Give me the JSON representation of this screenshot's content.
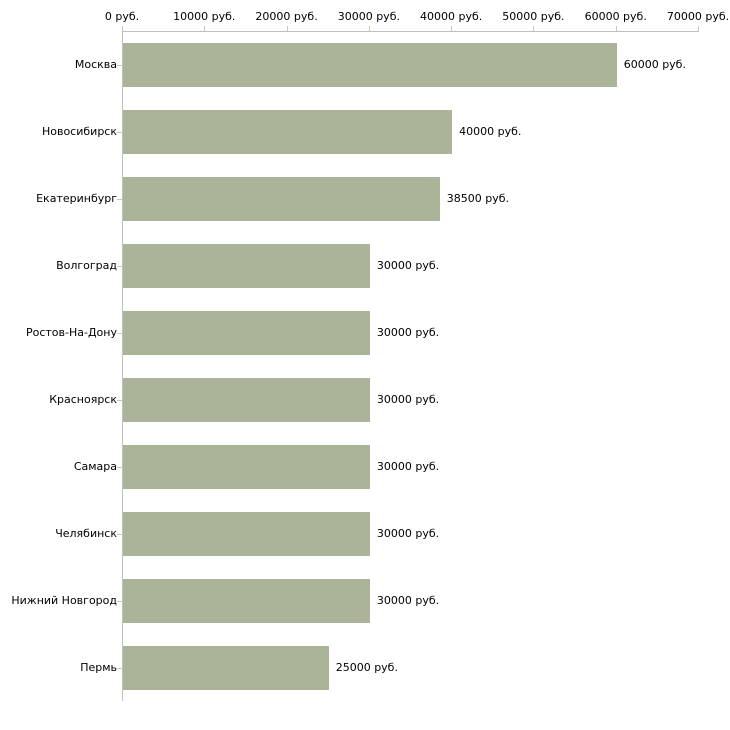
{
  "chart_data": {
    "type": "bar",
    "orientation": "horizontal",
    "title": "",
    "xlabel": "",
    "ylabel": "",
    "grid": false,
    "legend": null,
    "categories": [
      "Москва",
      "Новосибирск",
      "Екатеринбург",
      "Волгоград",
      "Ростов-На-Дону",
      "Красноярск",
      "Самара",
      "Челябинск",
      "Нижний Новгород",
      "Пермь"
    ],
    "values": [
      60000,
      40000,
      38500,
      30000,
      30000,
      30000,
      30000,
      30000,
      30000,
      25000
    ],
    "value_labels": [
      "60000 руб.",
      "40000 руб.",
      "38500 руб.",
      "30000 руб.",
      "30000 руб.",
      "30000 руб.",
      "30000 руб.",
      "30000 руб.",
      "30000 руб.",
      "25000 руб."
    ],
    "x_axis": {
      "position": "top",
      "min": 0,
      "max": 70000,
      "ticks": [
        0,
        10000,
        20000,
        30000,
        40000,
        50000,
        60000,
        70000
      ],
      "tick_labels": [
        "0 руб.",
        "10000 руб.",
        "20000 руб.",
        "30000 руб.",
        "40000 руб.",
        "50000 руб.",
        "60000 руб.",
        "70000 руб."
      ]
    },
    "colors": {
      "bar": "#abb399",
      "axis_line": "#c0c0c0",
      "tick_mark": "#cdc9ae",
      "text": "#000000",
      "background": "#ffffff"
    }
  }
}
